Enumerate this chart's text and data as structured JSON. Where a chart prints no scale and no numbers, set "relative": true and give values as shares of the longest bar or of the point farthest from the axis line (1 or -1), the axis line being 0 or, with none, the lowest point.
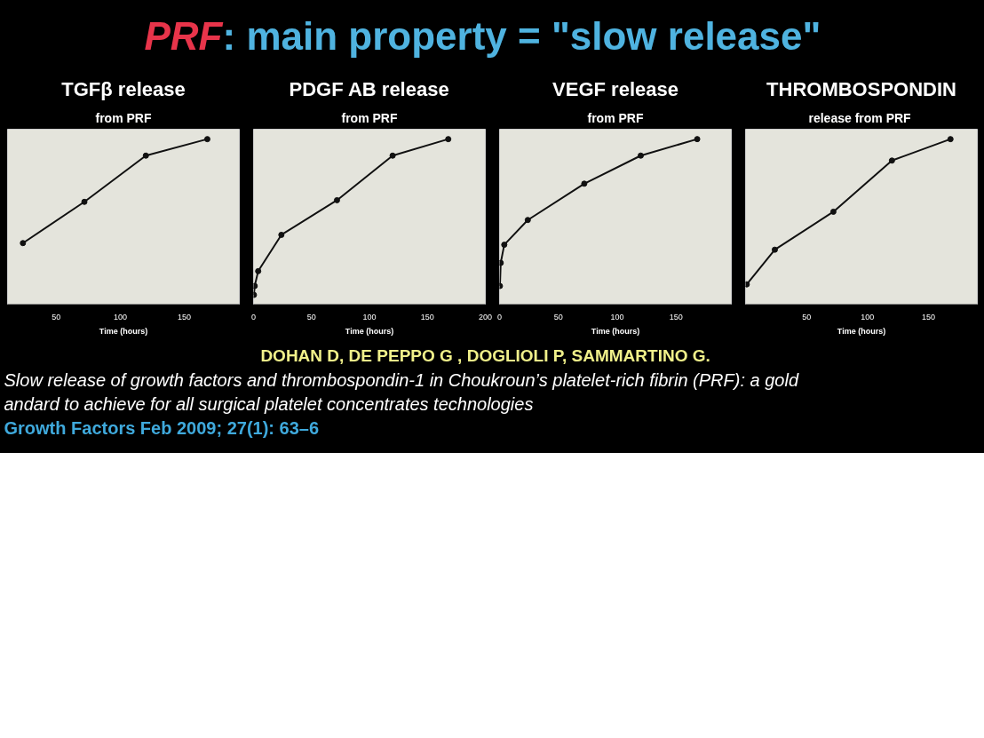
{
  "chart_data": [
    {
      "type": "other",
      "annotations": [
        "PRF",
        ":  main property = \"slow release\""
      ],
      "colors": [
        "#e8344a",
        "#4fb3e0"
      ]
    },
    {
      "type": "line",
      "title": "TGFβ release",
      "subtitle": "from PRF",
      "xlabel": "Time (hours)",
      "relative": true,
      "x": [
        24,
        72,
        120,
        168
      ],
      "xlim": [
        12,
        193
      ],
      "xticks": [
        50,
        100,
        150
      ],
      "marker": "circle",
      "line_style": "solid",
      "series": [
        {
          "color": "#111111",
          "values": [
            0.37,
            0.62,
            0.9,
            1
          ]
        }
      ]
    },
    {
      "type": "line",
      "title": "PDGF AB release",
      "subtitle": "from PRF",
      "xlabel": "Time (hours)",
      "relative": true,
      "x": [
        0.33,
        1,
        4,
        24,
        72,
        120,
        168
      ],
      "xlim": [
        0,
        200
      ],
      "xticks": [
        0,
        50,
        100,
        150,
        200
      ],
      "marker": "circle",
      "line_style": "solid",
      "series": [
        {
          "color": "#111111",
          "values": [
            0.056,
            0.11,
            0.2,
            0.42,
            0.63,
            0.9,
            1
          ]
        }
      ]
    },
    {
      "type": "line",
      "title": "VEGF release",
      "subtitle": "from PRF",
      "xlabel": "Time (hours)",
      "relative": true,
      "x": [
        0.33,
        1,
        4,
        24,
        72,
        120,
        168
      ],
      "xlim": [
        0,
        197
      ],
      "xticks": [
        0,
        50,
        100,
        150
      ],
      "marker": "circle",
      "line_style": "solid",
      "series": [
        {
          "color": "#111111",
          "values": [
            0.11,
            0.25,
            0.36,
            0.51,
            0.73,
            0.9,
            1
          ]
        }
      ]
    },
    {
      "type": "line",
      "title": "THROMBOSPONDIN",
      "subtitle": "release  from PRF",
      "xlabel": "Time (hours)",
      "relative": true,
      "x": [
        1,
        24,
        72,
        120,
        168
      ],
      "xlim": [
        0,
        190
      ],
      "xticks": [
        50,
        100,
        150
      ],
      "marker": "circle",
      "line_style": "solid",
      "series": [
        {
          "color": "#111111",
          "values": [
            0.12,
            0.33,
            0.56,
            0.87,
            1
          ]
        }
      ]
    },
    {
      "type": "other",
      "annotations": [
        "DOHAN D,  DE PEPPO G ,  DOGLIOLI P,  SAMMARTINO G.",
        "Slow release of growth  factors and thrombospondin-1 in Choukroun’s platelet-rich fibrin (PRF): a gold",
        "andard to achieve for all surgical platelet concentrates technologies",
        "Growth Factors Feb 2009; 27(1): 63–6"
      ],
      "colors": [
        "#f0f08a",
        "#ffffff",
        "#ffffff",
        "#3fa9dc"
      ]
    }
  ]
}
